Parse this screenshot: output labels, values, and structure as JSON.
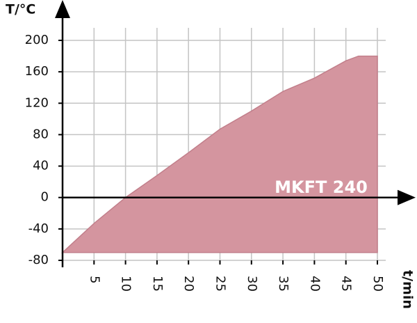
{
  "chart_data": {
    "type": "area",
    "y_label": "T/°C",
    "x_label": "t/min",
    "annotation": "MKFT 240",
    "x": [
      0,
      5,
      10,
      15,
      20,
      25,
      30,
      35,
      40,
      45,
      47,
      50
    ],
    "series": [
      {
        "name": "MKFT 240",
        "color": "#d4959f",
        "values": [
          -70,
          -33,
          0,
          28,
          57,
          87,
          110,
          135,
          152,
          174,
          180,
          180
        ]
      }
    ],
    "fill_to": -70,
    "xlim": [
      0,
      50
    ],
    "xticks": [
      5,
      10,
      15,
      20,
      25,
      30,
      35,
      40,
      45,
      50
    ],
    "ylim": [
      -80,
      200
    ],
    "yticks": [
      -80,
      -40,
      0,
      40,
      80,
      120,
      160,
      200
    ],
    "grid": true
  }
}
